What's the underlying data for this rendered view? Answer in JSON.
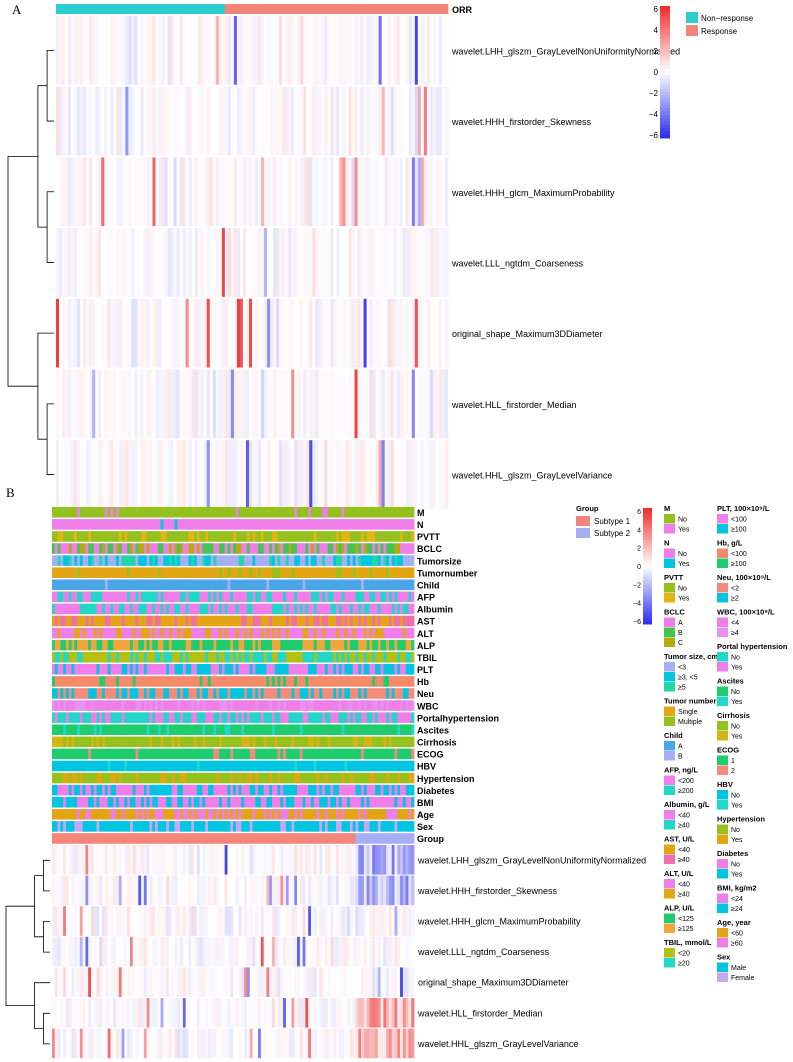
{
  "chart_data": [
    {
      "type": "heatmap",
      "panel_label": "A",
      "title": "",
      "column_annotation": {
        "name": "ORR",
        "legend": [
          {
            "label": "Non−response",
            "color": "#2ecdd0"
          },
          {
            "label": "Response",
            "color": "#f4857a"
          }
        ],
        "split_fraction_nonresponse": 0.43
      },
      "rows": [
        "wavelet.LHH_glszm_GrayLevelNonUniformityNormalized",
        "wavelet.HHH_firstorder_Skewness",
        "wavelet.HHH_glcm_MaximumProbability",
        "wavelet.LLL_ngtdm_Coarseness",
        "original_shape_Maximum3DDiameter",
        "wavelet.HLL_firstorder_Median",
        "wavelet.HHL_glszm_GrayLevelVariance"
      ],
      "n_columns": 130,
      "color_scale": {
        "ticks": [
          "6",
          "4",
          "2",
          "0",
          "−2",
          "−4",
          "−6"
        ],
        "min": -6,
        "max": 6,
        "low_color": "#2b2bee",
        "mid_color": "#ffffff",
        "high_color": "#ee2b2b"
      }
    },
    {
      "type": "heatmap",
      "panel_label": "B",
      "annotation_rows": [
        "M",
        "N",
        "PVTT",
        "BCLC",
        "Tumorsize",
        "Tumornumber",
        "Child",
        "AFP",
        "Albumin",
        "AST",
        "ALT",
        "ALP",
        "TBIL",
        "PLT",
        "Hb",
        "Neu",
        "WBC",
        "Portalhypertension",
        "Ascites",
        "Cirrhosis",
        "ECOG",
        "HBV",
        "Hypertension",
        "Diabetes",
        "BMI",
        "Age",
        "Sex",
        "Group"
      ],
      "rows": [
        "wavelet.LHH_glszm_GrayLevelNonUniformityNormalized",
        "wavelet.HHH_firstorder_Skewness",
        "wavelet.HHH_glcm_MaximumProbability",
        "wavelet.LLL_ngtdm_Coarseness",
        "original_shape_Maximum3DDiameter",
        "wavelet.HLL_firstorder_Median",
        "wavelet.HHL_glszm_GrayLevelVariance"
      ],
      "n_columns": 130,
      "group_split_fraction": 0.84,
      "group_legend": {
        "title": "Group",
        "items": [
          {
            "label": "Subtype 1",
            "color": "#f4857a"
          },
          {
            "label": "Subtype 2",
            "color": "#a6aef4"
          }
        ]
      },
      "color_scale": {
        "ticks": [
          "6",
          "4",
          "2",
          "0",
          "−2",
          "−4",
          "−6"
        ],
        "min": -6,
        "max": 6,
        "low_color": "#2b2bee",
        "mid_color": "#ffffff",
        "high_color": "#ee2b2b"
      },
      "legend_col1": [
        {
          "title": "M",
          "items": [
            {
              "label": "No",
              "color": "#95c11f"
            },
            {
              "label": "Yes",
              "color": "#f07ee8"
            }
          ]
        },
        {
          "title": "N",
          "items": [
            {
              "label": "No",
              "color": "#f07ee8"
            },
            {
              "label": "Yes",
              "color": "#00c5e0"
            }
          ]
        },
        {
          "title": "PVTT",
          "items": [
            {
              "label": "No",
              "color": "#95c11f"
            },
            {
              "label": "Yes",
              "color": "#e2b414"
            }
          ]
        },
        {
          "title": "BCLC",
          "items": [
            {
              "label": "A",
              "color": "#f07ee8"
            },
            {
              "label": "B",
              "color": "#44c454"
            },
            {
              "label": "C",
              "color": "#b6a912"
            }
          ]
        },
        {
          "title": "Tumor size, cm",
          "items": [
            {
              "label": "<3",
              "color": "#a6aef4"
            },
            {
              "label": "≥3, <5",
              "color": "#00c5e0"
            },
            {
              "label": "≥5",
              "color": "#22d6a8"
            }
          ]
        },
        {
          "title": "Tumor number",
          "items": [
            {
              "label": "Single",
              "color": "#e2a514"
            },
            {
              "label": "Multiple",
              "color": "#95c11f"
            }
          ]
        },
        {
          "title": "Child",
          "items": [
            {
              "label": "A",
              "color": "#4aa6e8"
            },
            {
              "label": "B",
              "color": "#a6aef4"
            }
          ]
        },
        {
          "title": "AFP, ng/L",
          "items": [
            {
              "label": "<200",
              "color": "#f07ee8"
            },
            {
              "label": "≥200",
              "color": "#22d6c8"
            }
          ]
        },
        {
          "title": "Albumin, g/L",
          "items": [
            {
              "label": "<40",
              "color": "#f07ee8"
            },
            {
              "label": "≥40",
              "color": "#22d6c8"
            }
          ]
        },
        {
          "title": "AST, U/L",
          "items": [
            {
              "label": "<40",
              "color": "#e2a514"
            },
            {
              "label": "≥40",
              "color": "#f06fa8"
            }
          ]
        },
        {
          "title": "ALT, U/L",
          "items": [
            {
              "label": "<40",
              "color": "#f07ee8"
            },
            {
              "label": "≥40",
              "color": "#e2a514"
            }
          ]
        },
        {
          "title": "ALP, U/L",
          "items": [
            {
              "label": "<125",
              "color": "#1fcc6e"
            },
            {
              "label": "≥125",
              "color": "#f0a63a"
            }
          ]
        },
        {
          "title": "TBIL, mmol/L",
          "items": [
            {
              "label": "<20",
              "color": "#b6c012"
            },
            {
              "label": "≥20",
              "color": "#22d6c8"
            }
          ]
        }
      ],
      "legend_col2": [
        {
          "title": "PLT, 100×10⁹/L",
          "items": [
            {
              "label": "<100",
              "color": "#f07ee8"
            },
            {
              "label": "≥100",
              "color": "#00c5e0"
            }
          ]
        },
        {
          "title": "Hb, g/L",
          "items": [
            {
              "label": "<100",
              "color": "#f48a6a"
            },
            {
              "label": "≥100",
              "color": "#1fcc6e"
            }
          ]
        },
        {
          "title": "Neu, 100×10⁹/L",
          "items": [
            {
              "label": "<2",
              "color": "#f48a7a"
            },
            {
              "label": "≥2",
              "color": "#00c5e0"
            }
          ]
        },
        {
          "title": "WBC, 100×10⁹/L",
          "items": [
            {
              "label": "<4",
              "color": "#f07ee8"
            },
            {
              "label": "≥4",
              "color": "#e690f0"
            }
          ]
        },
        {
          "title": "Portal hypertension",
          "items": [
            {
              "label": "No",
              "color": "#22d6c8"
            },
            {
              "label": "Yes",
              "color": "#f07ee8"
            }
          ]
        },
        {
          "title": "Ascites",
          "items": [
            {
              "label": "No",
              "color": "#1fcc6e"
            },
            {
              "label": "Yes",
              "color": "#22d6c8"
            }
          ]
        },
        {
          "title": "Cirrhosis",
          "items": [
            {
              "label": "No",
              "color": "#95c11f"
            },
            {
              "label": "Yes",
              "color": "#d6b414"
            }
          ]
        },
        {
          "title": "ECOG",
          "items": [
            {
              "label": "1",
              "color": "#1fcc6e"
            },
            {
              "label": "2",
              "color": "#f48a7a"
            }
          ]
        },
        {
          "title": "HBV",
          "items": [
            {
              "label": "No",
              "color": "#00c5e0"
            },
            {
              "label": "Yes",
              "color": "#22d6c8"
            }
          ]
        },
        {
          "title": "Hypertension",
          "items": [
            {
              "label": "No",
              "color": "#95c11f"
            },
            {
              "label": "Yes",
              "color": "#e2a514"
            }
          ]
        },
        {
          "title": "Diabetes",
          "items": [
            {
              "label": "No",
              "color": "#f07ee8"
            },
            {
              "label": "Yes",
              "color": "#00c5e0"
            }
          ]
        },
        {
          "title": "BMI, kg/m2",
          "items": [
            {
              "label": "<24",
              "color": "#f07ee8"
            },
            {
              "label": "≥24",
              "color": "#00c5e0"
            }
          ]
        },
        {
          "title": "Age, year",
          "items": [
            {
              "label": "<60",
              "color": "#e2a514"
            },
            {
              "label": "≥60",
              "color": "#f07ee8"
            }
          ]
        },
        {
          "title": "Sex",
          "items": [
            {
              "label": "Male",
              "color": "#00c5e0"
            },
            {
              "label": "Female",
              "color": "#c9a6f4"
            }
          ]
        }
      ]
    }
  ]
}
